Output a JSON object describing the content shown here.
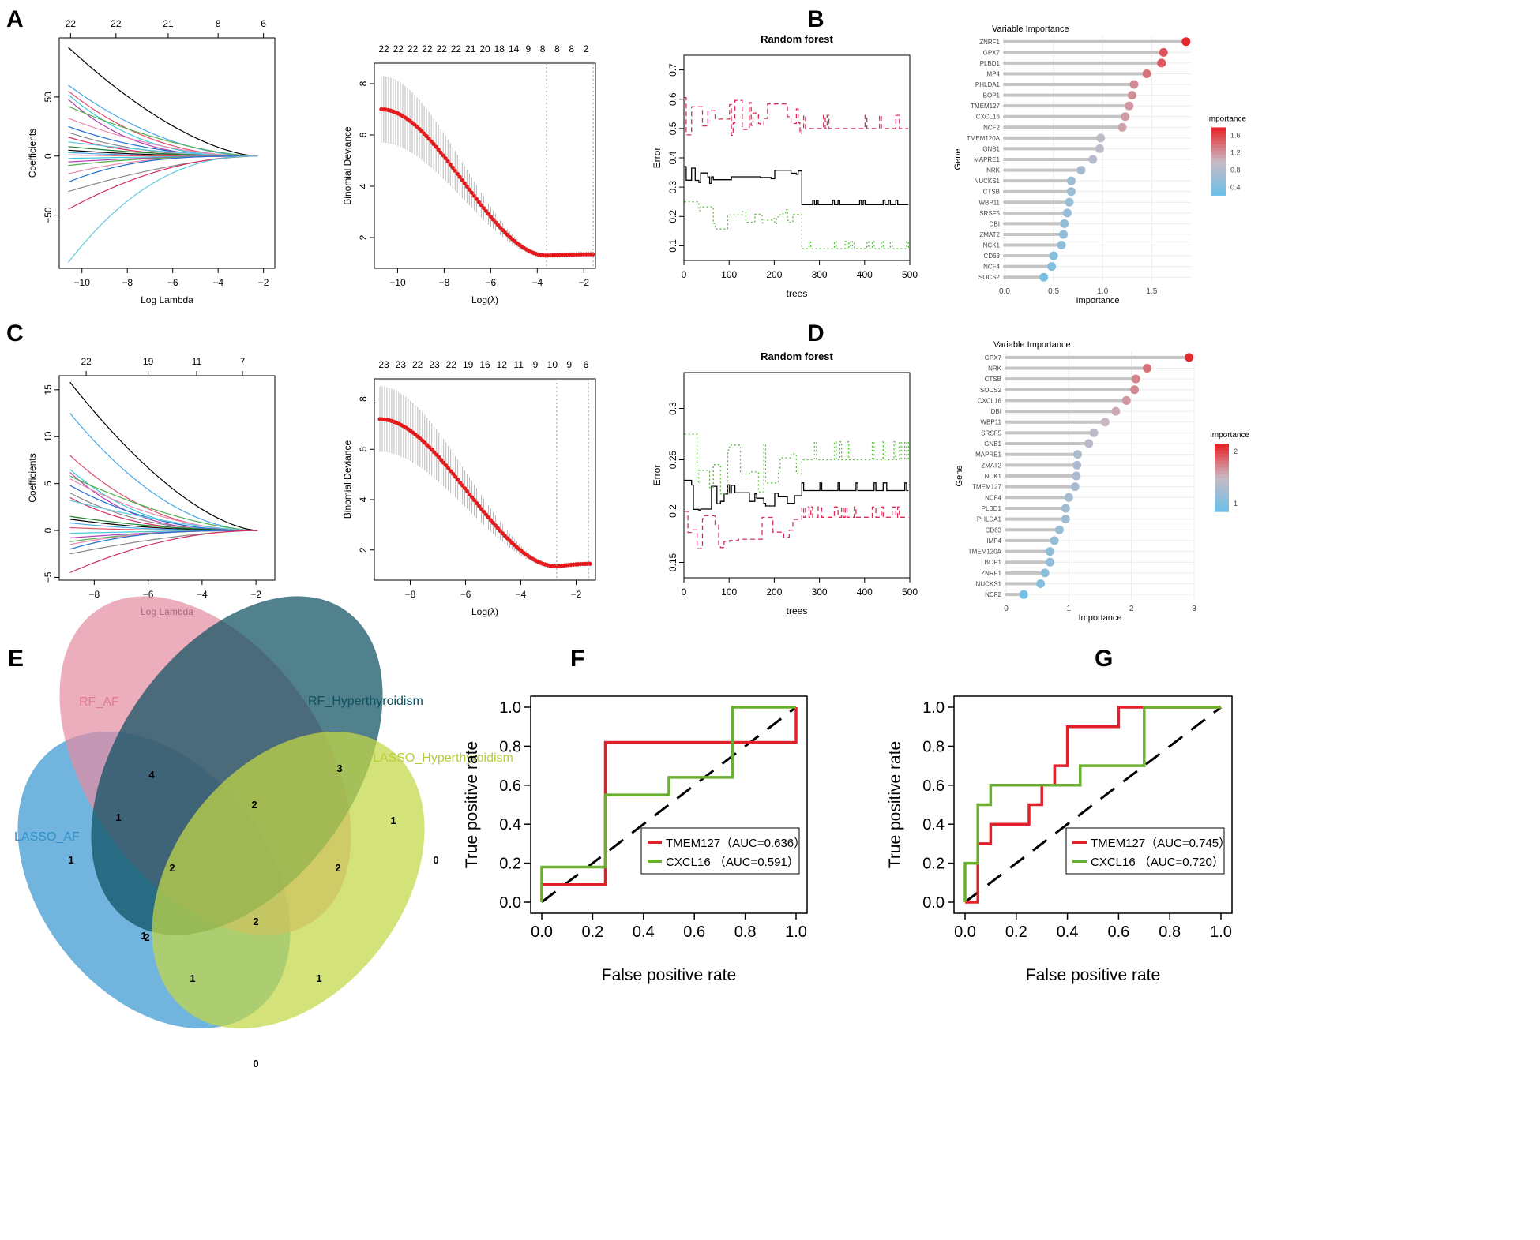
{
  "panels": {
    "A": "A",
    "B": "B",
    "C": "C",
    "D": "D",
    "E": "E",
    "F": "F",
    "G": "G"
  },
  "colors": {
    "red": "#e0202a",
    "green": "#6ab02e",
    "black": "#000000",
    "imp_high": "#e6282c",
    "imp_mid": "#c9b9c4",
    "imp_low": "#6fc0e6",
    "rf_red": "#d8305a",
    "rf_green": "#5ab840"
  },
  "chart_data": [
    {
      "id": "A1",
      "type": "line",
      "xlabel": "Log Lambda",
      "ylabel": "Coefficients",
      "xlim": [
        -11,
        -1.5
      ],
      "ylim": [
        -95,
        100
      ],
      "xticks": [
        -10,
        -8,
        -6,
        -4,
        -2
      ],
      "yticks": [
        -50,
        0,
        50
      ],
      "top_ticks": {
        "x": [
          -10.5,
          -8.5,
          -6.2,
          -4.0,
          -2.0
        ],
        "labels": [
          "22",
          "22",
          "21",
          "8",
          "6"
        ]
      },
      "end_values": [
        92,
        60,
        55,
        52,
        48,
        42,
        32,
        25,
        20,
        16,
        12,
        8,
        5,
        3,
        1,
        -2,
        -5,
        -8,
        -15,
        -22,
        -30,
        -45,
        -90
      ]
    },
    {
      "id": "A2",
      "type": "scatter",
      "xlabel": "Log(λ)",
      "ylabel": "Binomial Deviance",
      "xlim": [
        -11,
        -1.5
      ],
      "ylim": [
        0.8,
        8.8
      ],
      "xticks": [
        -10,
        -8,
        -6,
        -4,
        -2
      ],
      "yticks": [
        2,
        4,
        6,
        8
      ],
      "top_ticks": {
        "labels": [
          "22",
          "22",
          "22",
          "22",
          "22",
          "22",
          "21",
          "20",
          "18",
          "14",
          "9",
          "8",
          "8",
          "8",
          "2"
        ]
      },
      "curve": {
        "x0": -10.7,
        "x1": -1.6,
        "start": 7.0,
        "min": 1.3,
        "min_x": -3.6,
        "end": 1.35
      },
      "vlines": [
        -3.6,
        -1.6
      ]
    },
    {
      "id": "B1",
      "type": "line",
      "title": "Random forest",
      "xlabel": "trees",
      "ylabel": "Error",
      "xlim": [
        0,
        500
      ],
      "ylim": [
        0.05,
        0.75
      ],
      "xticks": [
        0,
        100,
        200,
        300,
        400,
        500
      ],
      "yticks": [
        0.1,
        0.2,
        0.3,
        0.4,
        0.5,
        0.6,
        0.7
      ],
      "series": [
        {
          "mean": 0.53,
          "final": 0.5,
          "noise": 0.09
        },
        {
          "mean": 0.34,
          "final": 0.24,
          "noise": 0.03
        },
        {
          "mean": 0.2,
          "final": 0.09,
          "noise": 0.05
        }
      ]
    },
    {
      "id": "B2",
      "type": "scatter",
      "title": "Variable Importance",
      "xlabel": "Importance",
      "ylabel": "Gene",
      "xlim": [
        0,
        1.9
      ],
      "xticks": [
        0,
        0.5,
        1,
        1.5
      ],
      "xtick_labels": [
        "0.0",
        "0.5",
        "1.0",
        "1.5"
      ],
      "legend": {
        "title": "Importance",
        "labels": [
          "1.6",
          "1.2",
          "0.8",
          "0.4"
        ],
        "range": [
          0.3,
          1.85
        ]
      },
      "genes": [
        "ZNRF1",
        "GPX7",
        "PLBD1",
        "IMP4",
        "PHLDA1",
        "BOP1",
        "TMEM127",
        "CXCL16",
        "NCF2",
        "TMEM120A",
        "GNB1",
        "MAPRE1",
        "NRK",
        "NUCKS1",
        "CTSB",
        "WBP11",
        "SRSF5",
        "DBI",
        "ZMAT2",
        "NCK1",
        "CD63",
        "NCF4",
        "SOCS2"
      ],
      "values": [
        1.85,
        1.62,
        1.6,
        1.45,
        1.32,
        1.3,
        1.27,
        1.23,
        1.2,
        0.98,
        0.97,
        0.9,
        0.78,
        0.68,
        0.68,
        0.66,
        0.64,
        0.61,
        0.6,
        0.58,
        0.5,
        0.48,
        0.4
      ]
    },
    {
      "id": "C1",
      "type": "line",
      "xlabel": "Log Lambda",
      "ylabel": "Coefficients",
      "xlim": [
        -9.3,
        -1.3
      ],
      "ylim": [
        -5.3,
        16.5
      ],
      "xticks": [
        -8,
        -6,
        -4,
        -2
      ],
      "yticks": [
        -5,
        0,
        5,
        10,
        15
      ],
      "top_ticks": {
        "x": [
          -8.3,
          -6.0,
          -4.2,
          -2.5
        ],
        "labels": [
          "22",
          "19",
          "11",
          "7"
        ]
      },
      "end_values": [
        15.8,
        12.5,
        8,
        6.5,
        6.2,
        5.8,
        5.5,
        4.8,
        4,
        3.5,
        3.2,
        1.5,
        1.2,
        0.8,
        0.3,
        -0.3,
        -0.8,
        -1.2,
        -1.5,
        -2,
        -2.5,
        -4.5
      ]
    },
    {
      "id": "C2",
      "type": "scatter",
      "xlabel": "Log(λ)",
      "ylabel": "Binomial Deviance",
      "xlim": [
        -9.3,
        -1.3
      ],
      "ylim": [
        0.8,
        8.8
      ],
      "xticks": [
        -8,
        -6,
        -4,
        -2
      ],
      "yticks": [
        2,
        4,
        6,
        8
      ],
      "top_ticks": {
        "labels": [
          "23",
          "23",
          "22",
          "23",
          "22",
          "19",
          "16",
          "12",
          "11",
          "9",
          "10",
          "9",
          "6"
        ]
      },
      "curve": {
        "x0": -9.1,
        "x1": -1.5,
        "start": 7.2,
        "min": 1.35,
        "min_x": -2.7,
        "end": 1.45
      },
      "vlines": [
        -2.7,
        -1.55
      ]
    },
    {
      "id": "D1",
      "type": "line",
      "title": "Random forest",
      "xlabel": "trees",
      "ylabel": "Error",
      "xlim": [
        0,
        500
      ],
      "ylim": [
        0.135,
        0.335
      ],
      "xticks": [
        0,
        100,
        200,
        300,
        400,
        500
      ],
      "yticks": [
        0.15,
        0.2,
        0.25,
        0.3
      ],
      "series": [
        {
          "mean": 0.18,
          "final": 0.194,
          "noise": 0.02
        },
        {
          "mean": 0.215,
          "final": 0.22,
          "noise": 0.015
        },
        {
          "mean": 0.24,
          "final": 0.25,
          "noise": 0.035
        }
      ]
    },
    {
      "id": "D2",
      "type": "scatter",
      "title": "Variable Importance",
      "xlabel": "Importance",
      "ylabel": "Gene",
      "xlim": [
        0,
        3
      ],
      "xticks": [
        0,
        1,
        2,
        3
      ],
      "xtick_labels": [
        "0",
        "1",
        "2",
        "3"
      ],
      "legend": {
        "title": "Importance",
        "labels": [
          "2",
          "1"
        ],
        "range": [
          0.2,
          2.95
        ]
      },
      "genes": [
        "GPX7",
        "NRK",
        "CTSB",
        "SOCS2",
        "CXCL16",
        "DBI",
        "WBP11",
        "SRSF5",
        "GNB1",
        "MAPRE1",
        "ZMAT2",
        "NCK1",
        "TMEM127",
        "NCF4",
        "PLBD1",
        "PHLDA1",
        "CD63",
        "IMP4",
        "TMEM120A",
        "BOP1",
        "ZNRF1",
        "NUCKS1",
        "NCF2"
      ],
      "values": [
        2.92,
        2.25,
        2.07,
        2.05,
        1.92,
        1.75,
        1.58,
        1.4,
        1.32,
        1.14,
        1.13,
        1.12,
        1.1,
        1.0,
        0.95,
        0.95,
        0.85,
        0.77,
        0.7,
        0.7,
        0.62,
        0.55,
        0.28
      ]
    },
    {
      "id": "E",
      "type": "venn",
      "sets": [
        "LASSO_AF",
        "RF_AF",
        "RF_Hyperthyroidism",
        "LASSO_Hyperthyroidism"
      ],
      "set_colors": [
        "#3a97d0",
        "#e48ea4",
        "#0d5060",
        "#c4d845"
      ],
      "counts": [
        "4",
        "3",
        "1",
        "1",
        "1",
        "2",
        "2",
        "2",
        "2",
        "1",
        "0",
        "2",
        "1",
        "1",
        "0"
      ]
    },
    {
      "id": "F",
      "type": "line",
      "xlabel": "False positive rate",
      "ylabel": "True positive rate",
      "xlim": [
        0,
        1
      ],
      "ylim": [
        0,
        1
      ],
      "ticks": [
        "0.0",
        "0.2",
        "0.4",
        "0.6",
        "0.8",
        "1.0"
      ],
      "series": [
        {
          "name": "TMEM127（AUC=0.636）",
          "points": [
            [
              0,
              0
            ],
            [
              0,
              0.09
            ],
            [
              0.25,
              0.09
            ],
            [
              0.25,
              0.82
            ],
            [
              1,
              0.82
            ],
            [
              1,
              1
            ]
          ]
        },
        {
          "name": "CXCL16 （AUC=0.591）",
          "points": [
            [
              0,
              0
            ],
            [
              0,
              0.18
            ],
            [
              0.25,
              0.18
            ],
            [
              0.25,
              0.55
            ],
            [
              0.5,
              0.55
            ],
            [
              0.5,
              0.64
            ],
            [
              0.75,
              0.64
            ],
            [
              0.75,
              1
            ],
            [
              1,
              1
            ]
          ]
        }
      ]
    },
    {
      "id": "G",
      "type": "line",
      "xlabel": "False positive rate",
      "ylabel": "True positive rate",
      "xlim": [
        0,
        1
      ],
      "ylim": [
        0,
        1
      ],
      "ticks": [
        "0.0",
        "0.2",
        "0.4",
        "0.6",
        "0.8",
        "1.0"
      ],
      "series": [
        {
          "name": "TMEM127（AUC=0.745）",
          "points": [
            [
              0,
              0
            ],
            [
              0.05,
              0
            ],
            [
              0.05,
              0.3
            ],
            [
              0.1,
              0.3
            ],
            [
              0.1,
              0.4
            ],
            [
              0.25,
              0.4
            ],
            [
              0.25,
              0.5
            ],
            [
              0.3,
              0.5
            ],
            [
              0.3,
              0.6
            ],
            [
              0.35,
              0.6
            ],
            [
              0.35,
              0.7
            ],
            [
              0.4,
              0.7
            ],
            [
              0.4,
              0.9
            ],
            [
              0.6,
              0.9
            ],
            [
              0.6,
              1
            ],
            [
              1,
              1
            ]
          ]
        },
        {
          "name": "CXCL16 （AUC=0.720）",
          "points": [
            [
              0,
              0
            ],
            [
              0,
              0.2
            ],
            [
              0.05,
              0.2
            ],
            [
              0.05,
              0.5
            ],
            [
              0.1,
              0.5
            ],
            [
              0.1,
              0.6
            ],
            [
              0.4,
              0.6
            ],
            [
              0.45,
              0.6
            ],
            [
              0.45,
              0.7
            ],
            [
              0.7,
              0.7
            ],
            [
              0.7,
              1
            ],
            [
              1,
              1
            ]
          ]
        }
      ]
    }
  ]
}
